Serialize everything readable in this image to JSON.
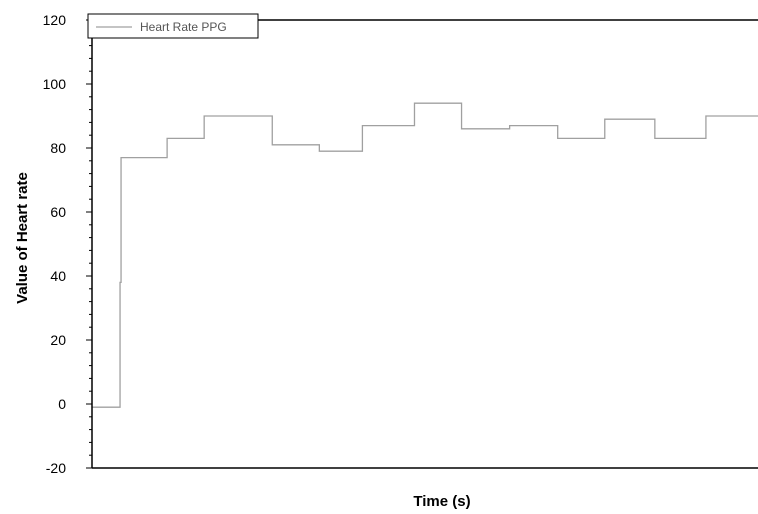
{
  "chart_data": {
    "type": "line",
    "title": "",
    "xlabel": "Time (s)",
    "ylabel": "Value of Heart rate",
    "ylim": [
      -20,
      120
    ],
    "yticks": [
      "-20",
      "0",
      "20",
      "40",
      "60",
      "80",
      "100",
      "120"
    ],
    "x_tick_labels_shown": false,
    "grid": false,
    "legend_position": "top-left",
    "series": [
      {
        "name": "Heart Rate PPG",
        "color": "#a0a0a0",
        "step": true,
        "x": [
          0,
          28,
          29,
          75,
          112,
          180,
          227,
          270,
          322,
          369,
          417,
          465,
          512,
          562,
          613,
          665
        ],
        "values": [
          -1,
          38,
          77,
          83,
          90,
          81,
          79,
          87,
          94,
          86,
          87,
          83,
          89,
          83,
          90,
          90
        ]
      }
    ]
  }
}
